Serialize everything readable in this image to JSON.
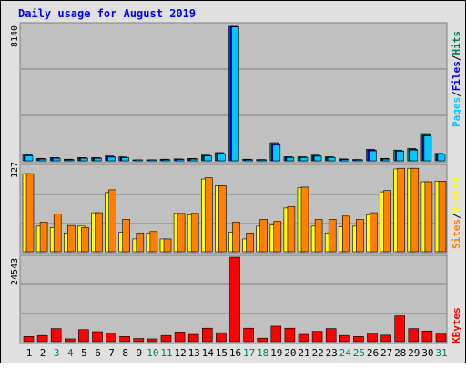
{
  "chart_data": [
    {
      "type": "bar",
      "title": "Daily usage for August 2019",
      "panel": "hits-files-pages",
      "ymax_label": "8140",
      "categories": [
        "1",
        "2",
        "3",
        "4",
        "5",
        "6",
        "7",
        "8",
        "9",
        "10",
        "11",
        "12",
        "13",
        "14",
        "15",
        "16",
        "17",
        "18",
        "19",
        "20",
        "21",
        "22",
        "23",
        "24",
        "25",
        "26",
        "27",
        "28",
        "29",
        "30",
        "31"
      ],
      "series": [
        {
          "name": "Hits",
          "color": "#00805c",
          "values": [
            400,
            150,
            200,
            100,
            200,
            200,
            300,
            250,
            50,
            50,
            100,
            120,
            150,
            350,
            500,
            8140,
            100,
            80,
            1100,
            250,
            250,
            350,
            250,
            120,
            80,
            700,
            150,
            650,
            750,
            1650,
            450
          ]
        },
        {
          "name": "Files",
          "color": "#0000ff",
          "values": [
            350,
            120,
            180,
            80,
            180,
            180,
            250,
            200,
            40,
            40,
            80,
            100,
            120,
            320,
            450,
            8140,
            80,
            60,
            1000,
            220,
            220,
            300,
            220,
            100,
            70,
            650,
            120,
            600,
            700,
            1550,
            420
          ]
        },
        {
          "name": "Pages",
          "color": "#00c8ff",
          "values": [
            300,
            100,
            150,
            50,
            150,
            150,
            220,
            180,
            30,
            30,
            60,
            80,
            100,
            300,
            420,
            8100,
            60,
            50,
            950,
            200,
            200,
            280,
            200,
            80,
            50,
            600,
            100,
            580,
            650,
            1500,
            400
          ]
        }
      ]
    },
    {
      "type": "bar",
      "panel": "visits-sites",
      "ymax_label": "127",
      "categories": [
        "1",
        "2",
        "3",
        "4",
        "5",
        "6",
        "7",
        "8",
        "9",
        "10",
        "11",
        "12",
        "13",
        "14",
        "15",
        "16",
        "17",
        "18",
        "19",
        "20",
        "21",
        "22",
        "23",
        "24",
        "25",
        "26",
        "27",
        "28",
        "29",
        "30",
        "31"
      ],
      "series": [
        {
          "name": "Visits",
          "color": "#ffff00",
          "values": [
            116,
            38,
            36,
            28,
            38,
            58,
            88,
            29,
            19,
            28,
            19,
            57,
            55,
            108,
            98,
            29,
            19,
            38,
            40,
            65,
            95,
            38,
            28,
            37,
            38,
            55,
            89,
            123,
            124,
            104,
            105
          ]
        },
        {
          "name": "Sites",
          "color": "#ff8000",
          "values": [
            116,
            44,
            56,
            39,
            36,
            58,
            92,
            48,
            28,
            30,
            19,
            57,
            57,
            110,
            98,
            44,
            28,
            48,
            45,
            67,
            96,
            48,
            48,
            53,
            48,
            58,
            91,
            124,
            124,
            104,
            105
          ]
        }
      ]
    },
    {
      "type": "bar",
      "panel": "kbytes",
      "ymax_label": "24543",
      "categories": [
        "1",
        "2",
        "3",
        "4",
        "5",
        "6",
        "7",
        "8",
        "9",
        "10",
        "11",
        "12",
        "13",
        "14",
        "15",
        "16",
        "17",
        "18",
        "19",
        "20",
        "21",
        "22",
        "23",
        "24",
        "25",
        "26",
        "27",
        "28",
        "29",
        "30",
        "31"
      ],
      "series": [
        {
          "name": "KBytes",
          "color": "#ff0000",
          "values": [
            1500,
            1800,
            3800,
            800,
            3500,
            2900,
            2200,
            1500,
            900,
            800,
            1800,
            2800,
            2100,
            3900,
            2600,
            24543,
            3900,
            1000,
            4500,
            3900,
            2100,
            3000,
            3800,
            1800,
            1500,
            2500,
            1900,
            7500,
            3800,
            3100,
            2200
          ]
        }
      ]
    }
  ],
  "title": "Daily usage for August 2019",
  "legend": {
    "top": {
      "pages": "Pages",
      "files": "Files",
      "hits": "Hits",
      "sep1": "/",
      "sep2": "/"
    },
    "middle": {
      "sites": "Sites",
      "visits": "Visits",
      "sep": "/"
    },
    "bottom": {
      "kbytes": "KBytes"
    }
  },
  "weekend_days": [
    "3",
    "4",
    "10",
    "11",
    "17",
    "18",
    "24",
    "25",
    "31"
  ],
  "colors": {
    "plot_bg": "#c0c0c0",
    "frame_bg": "#e0e0e0",
    "title": "#0000ff",
    "weekend_label": "#00805c",
    "weekday_label": "#000000"
  }
}
